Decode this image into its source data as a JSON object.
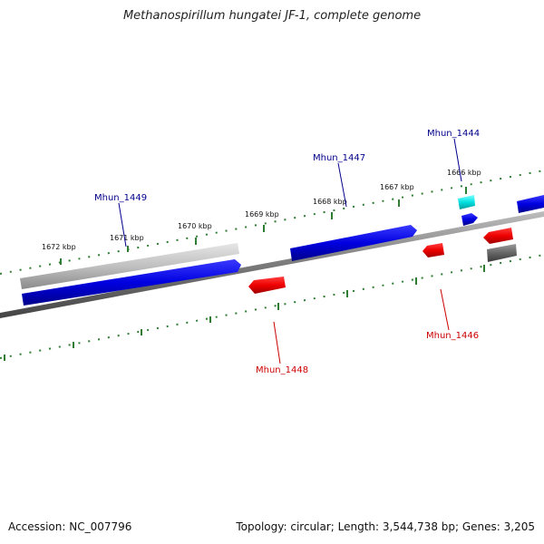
{
  "title": "Methanospirillum hungatei JF-1, complete genome",
  "footer": {
    "accession": "Accession: NC_007796",
    "summary": "Topology: circular; Length: 3,544,738 bp; Genes: 3,205"
  },
  "ruler": {
    "tick_labels": [
      "1672 kbp",
      "1671 kbp",
      "1670 kbp",
      "1669 kbp",
      "1668 kbp",
      "1667 kbp",
      "1666 kbp"
    ]
  },
  "genes": {
    "forward_labeled": [
      {
        "name": "Mhun_1449",
        "color": "#00008b"
      },
      {
        "name": "Mhun_1447",
        "color": "#00008b"
      },
      {
        "name": "Mhun_1444",
        "color": "#00008b"
      }
    ],
    "reverse_labeled": [
      {
        "name": "Mhun_1448",
        "color": "#cc0000"
      },
      {
        "name": "Mhun_1446",
        "color": "#cc0000"
      }
    ]
  },
  "colors": {
    "forward_gene": "#0000ee",
    "reverse_gene": "#ee0000",
    "highlight_gene": "#00dddd",
    "pseudo_gene": "#bdbdbd",
    "backbone": "#777777",
    "tick": "#2e7d32",
    "forward_label": "#00008b",
    "reverse_label": "#cc0000"
  }
}
